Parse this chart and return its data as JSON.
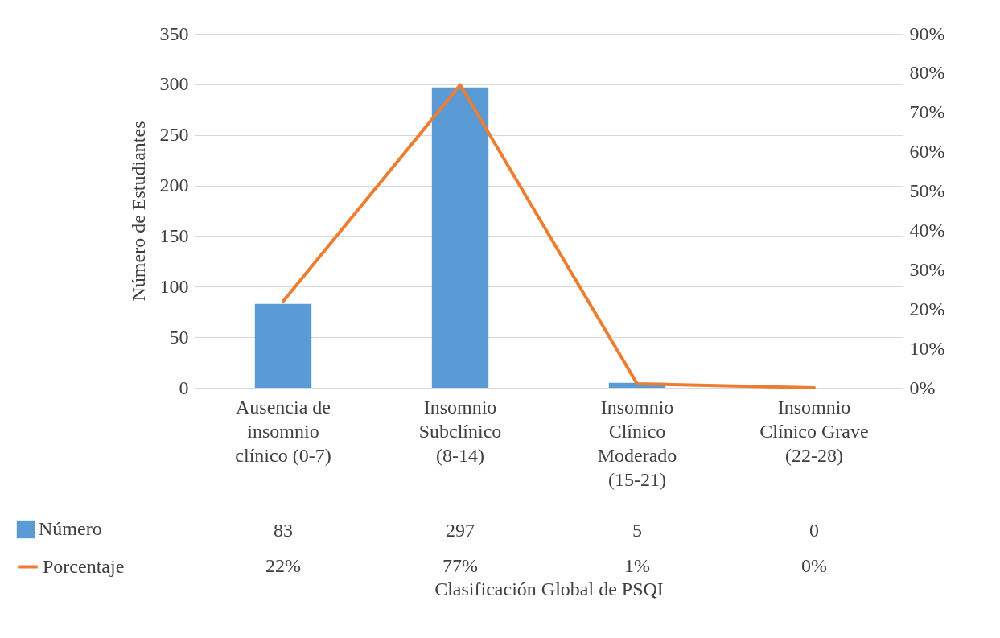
{
  "chart_data": {
    "type": "bar",
    "xlabel": "Clasificación Global de PSQI",
    "ylabel": "Número de Estudiantes",
    "categories": [
      "Ausencia de insomnio clínico (0-7)",
      "Insomnio Subclínico (8-14)",
      "Insomnio Clínico Moderado (15-21)",
      "Insomnio Clínico Grave (22-28)"
    ],
    "series": [
      {
        "name": "Número",
        "color": "#5b9bd5",
        "values": [
          83,
          297,
          5,
          0
        ],
        "value_labels": [
          "83",
          "297",
          "5",
          "0"
        ]
      },
      {
        "name": "Porcentaje",
        "type": "line",
        "axis": "y2",
        "color": "#ed7d31",
        "values": [
          22,
          77,
          1,
          0
        ],
        "value_labels": [
          "22%",
          "77%",
          "1%",
          "0%"
        ]
      }
    ],
    "ylim": [
      0,
      350
    ],
    "yticks": [
      0,
      50,
      100,
      150,
      200,
      250,
      300,
      350
    ],
    "y2lim": [
      0,
      90
    ],
    "y2ticks": [
      {
        "value": 0,
        "label": "0%"
      },
      {
        "value": 10,
        "label": "10%"
      },
      {
        "value": 20,
        "label": "20%"
      },
      {
        "value": 30,
        "label": "30%"
      },
      {
        "value": 40,
        "label": "40%"
      },
      {
        "value": 50,
        "label": "50%"
      },
      {
        "value": 60,
        "label": "60%"
      },
      {
        "value": 70,
        "label": "70%"
      },
      {
        "value": 80,
        "label": "80%"
      },
      {
        "value": 90,
        "label": "90%"
      }
    ],
    "grid": "y",
    "legend": "bottom left",
    "marker": "none",
    "line_style": "solid"
  }
}
